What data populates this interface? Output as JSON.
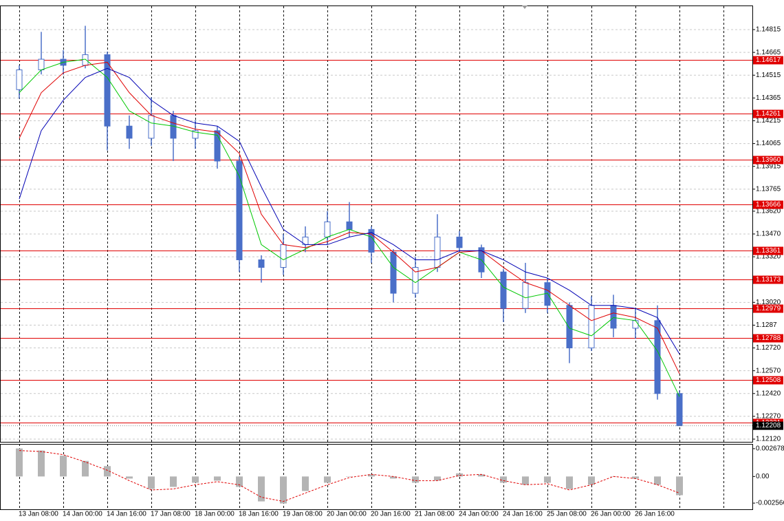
{
  "chart_data": [
    {
      "type": "candlestick",
      "color": "#4a6fc8",
      "grid": true,
      "categories": [
        "13 Jan 08:00",
        null,
        "14 Jan 00:00",
        null,
        "14 Jan 16:00",
        null,
        "17 Jan 08:00",
        null,
        "18 Jan 00:00",
        null,
        "18 Jan 16:00",
        null,
        "19 Jan 08:00",
        null,
        "20 Jan 00:00",
        null,
        "20 Jan 16:00",
        null,
        "21 Jan 08:00",
        null,
        "24 Jan 00:00",
        null,
        "24 Jan 16:00",
        null,
        "25 Jan 08:00",
        null,
        "26 Jan 00:00",
        null,
        "26 Jan 16:00",
        null,
        null
      ],
      "open": [
        1.1442,
        1.1455,
        1.1462,
        1.1458,
        1.1465,
        1.1418,
        1.141,
        1.1425,
        1.141,
        1.1415,
        1.1395,
        1.133,
        1.1325,
        1.134,
        1.1345,
        1.1355,
        1.135,
        1.1335,
        1.1308,
        1.1325,
        1.1345,
        1.1338,
        1.1322,
        1.1298,
        1.1315,
        1.13,
        1.1272,
        1.13,
        1.1285,
        1.129,
        1.1242
      ],
      "high": [
        1.1458,
        1.148,
        1.1468,
        1.1484,
        1.1467,
        1.1425,
        1.1437,
        1.1428,
        1.1422,
        1.1418,
        1.1398,
        1.1333,
        1.1347,
        1.1352,
        1.1362,
        1.1368,
        1.1352,
        1.1337,
        1.1332,
        1.136,
        1.1349,
        1.134,
        1.1324,
        1.1328,
        1.1318,
        1.1302,
        1.1306,
        1.1307,
        1.1298,
        1.13,
        1.1244
      ],
      "low": [
        1.1436,
        1.1452,
        1.1452,
        1.1456,
        1.1402,
        1.1403,
        1.1405,
        1.1395,
        1.1403,
        1.139,
        1.1322,
        1.1315,
        1.132,
        1.1335,
        1.134,
        1.1345,
        1.1328,
        1.1302,
        1.1305,
        1.1322,
        1.1335,
        1.1318,
        1.1289,
        1.1295,
        1.1295,
        1.1262,
        1.127,
        1.1279,
        1.1278,
        1.1238,
        1.1221
      ],
      "close": [
        1.1455,
        1.1462,
        1.1458,
        1.1465,
        1.1418,
        1.141,
        1.1425,
        1.141,
        1.1415,
        1.1395,
        1.133,
        1.1325,
        1.134,
        1.1345,
        1.1355,
        1.135,
        1.1335,
        1.1308,
        1.1325,
        1.1345,
        1.1338,
        1.1322,
        1.1298,
        1.1315,
        1.13,
        1.1272,
        1.13,
        1.1285,
        1.129,
        1.1242,
        1.12208
      ],
      "series": [
        {
          "color": "#00c800",
          "values": [
            1.144,
            1.1455,
            1.146,
            1.1462,
            1.145,
            1.1428,
            1.142,
            1.1418,
            1.1414,
            1.1412,
            1.1385,
            1.134,
            1.133,
            1.1337,
            1.1345,
            1.135,
            1.1345,
            1.1325,
            1.1315,
            1.1325,
            1.1335,
            1.133,
            1.1312,
            1.1305,
            1.1308,
            1.1285,
            1.128,
            1.1292,
            1.129,
            1.127,
            1.124
          ]
        },
        {
          "color": "#e00000",
          "values": [
            1.141,
            1.144,
            1.1453,
            1.1458,
            1.146,
            1.144,
            1.1425,
            1.142,
            1.1416,
            1.1414,
            1.14,
            1.136,
            1.134,
            1.1338,
            1.1342,
            1.1348,
            1.1347,
            1.1335,
            1.1322,
            1.1325,
            1.1335,
            1.1336,
            1.1325,
            1.1315,
            1.131,
            1.13,
            1.129,
            1.1295,
            1.1292,
            1.1285,
            1.1255
          ]
        },
        {
          "color": "#0000b4",
          "values": [
            1.137,
            1.1415,
            1.1435,
            1.145,
            1.1456,
            1.145,
            1.1435,
            1.1425,
            1.142,
            1.1418,
            1.1408,
            1.1378,
            1.135,
            1.134,
            1.134,
            1.1345,
            1.1348,
            1.134,
            1.133,
            1.133,
            1.1336,
            1.1336,
            1.133,
            1.1322,
            1.1318,
            1.131,
            1.13,
            1.13,
            1.1298,
            1.1292,
            1.1268
          ]
        }
      ],
      "level_color": "#e00000",
      "levels": [
        1.14617,
        1.14261,
        {
          "value": 1.1396,
          "label": "1.13960"
        },
        1.13666,
        1.13361,
        1.13173,
        1.12979,
        1.12788,
        1.12508,
        1.12231
      ],
      "current_price": 1.12208,
      "ylim": [
        1.12102,
        1.14969
      ],
      "yticks": [
        1.14815,
        1.14665,
        1.14515,
        1.14365,
        1.14215,
        1.14065,
        1.13915,
        1.13765,
        {
          "value": 1.1362,
          "label": "1.13620"
        },
        {
          "value": 1.1347,
          "label": "1.13470"
        },
        {
          "value": 1.1332,
          "label": "1.13320"
        },
        {
          "value": 1.1302,
          "label": "1.13020"
        },
        1.1287,
        {
          "value": 1.1272,
          "label": "1.12720"
        },
        {
          "value": 1.1257,
          "label": "1.12570"
        },
        {
          "value": 1.1242,
          "label": "1.12420"
        },
        {
          "value": 1.1227,
          "label": "1.12270"
        },
        {
          "value": 1.1212,
          "label": "1.12120"
        }
      ]
    },
    {
      "type": "macd",
      "color": "#b4b4b4",
      "signal_color": "#e00000",
      "values": [
        0.0027,
        0.0025,
        0.002,
        0.0015,
        0.001,
        -0.0002,
        -0.0012,
        -0.001,
        -0.0006,
        -0.0004,
        -0.001,
        -0.0024,
        -0.0026,
        -0.0014,
        -0.0006,
        0,
        0.0002,
        -0.0002,
        -0.0006,
        -0.0004,
        0.0003,
        0.0002,
        -0.0006,
        -0.0008,
        -0.0006,
        -0.0012,
        -0.0008,
        0,
        -0.0002,
        -0.0008,
        -0.0018
      ],
      "signal": [
        0.0025,
        0.0024,
        0.0021,
        0.0014,
        0.0006,
        -0.0004,
        -0.0013,
        -0.0012,
        -0.0008,
        -0.0005,
        -0.0008,
        -0.002,
        -0.0024,
        -0.0016,
        -0.0008,
        -0.0001,
        0.0002,
        0,
        -0.0004,
        -0.0004,
        0.0001,
        0.0002,
        -0.0004,
        -0.0008,
        -0.0007,
        -0.0013,
        -0.0008,
        0,
        -0.0002,
        -0.0008,
        -0.0016
      ],
      "ylim": [
        -0.00316,
        0.00307
      ],
      "yticks": [
        0.002678,
        {
          "value": 0,
          "label": "0.00"
        },
        -0.002566
      ]
    }
  ]
}
